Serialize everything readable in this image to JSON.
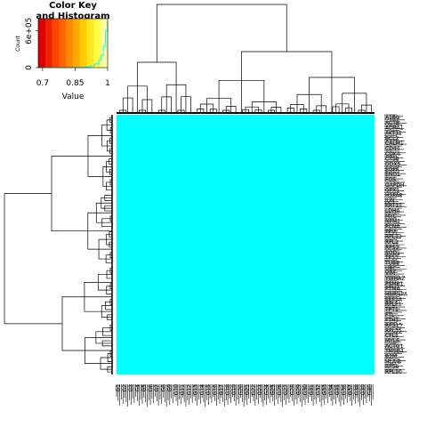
{
  "chart_data": {
    "type": "heatmap",
    "heatmap_color": "#00ffff",
    "row_labels": [
      "A1BG",
      "ACTB",
      "ADRA1",
      "AKT11",
      "BCL2",
      "CALM1",
      "CD44",
      "CDK4",
      "CTSB",
      "DDX5",
      "EGFR",
      "ENO1",
      "FOS",
      "GAPDH",
      "GPX1",
      "HSPA8",
      "JUN",
      "KRT13",
      "LDHA",
      "MYC",
      "NPM1",
      "PCNA",
      "PPIA",
      "RPL13",
      "RPL2",
      "RPS3",
      "SOD1",
      "TP53",
      "TUBB",
      "UBC",
      "VIM",
      "YWHAZ",
      "PSMB1",
      "PTMA",
      "HNRNPA",
      "EEF1A",
      "RPLP1",
      "TPT1",
      "FTL",
      "FTH1",
      "RPS15",
      "RPL35",
      "CFL1",
      "MYL6",
      "ACTG1",
      "TMSB4",
      "B2M",
      "HLA-B",
      "RPS6",
      "RPL10"
    ],
    "col_labels": [
      "G1",
      "G2",
      "G3",
      "G4",
      "G5",
      "G6",
      "G7",
      "G8",
      "G9",
      "G10",
      "G11",
      "G12",
      "G13",
      "G14",
      "G15",
      "G16",
      "G17",
      "G18",
      "G19",
      "G20",
      "G21",
      "G22",
      "G23",
      "G24",
      "G25",
      "G26",
      "G27",
      "G28",
      "G29",
      "G30",
      "G31",
      "G32",
      "G33",
      "G34",
      "G35",
      "G36",
      "G37",
      "G38",
      "G39",
      "G40"
    ],
    "color_key": {
      "title": "Color Key\nand Histogram",
      "xlabel": "Value",
      "ylabel": "Count",
      "x_ticks": [
        "0.7",
        "0.85",
        "1"
      ],
      "y_ticks": [
        "0",
        "6e+05"
      ],
      "xlim": [
        0.68,
        1.0
      ],
      "gradient": [
        "#dd0000",
        "#ee2200",
        "#ff4400",
        "#ff6600",
        "#ff8800",
        "#ffaa00",
        "#ffcc00",
        "#ffe622",
        "#ffff44",
        "#ffffaa"
      ],
      "histogram_color": "#00ffff",
      "histogram": {
        "x": [
          0.68,
          0.72,
          0.76,
          0.8,
          0.84,
          0.88,
          0.9,
          0.92,
          0.94,
          0.96,
          0.97,
          0.98,
          0.99,
          1.0
        ],
        "y": [
          0,
          0,
          0,
          0,
          0,
          5000,
          15000,
          30000,
          60000,
          120000,
          200000,
          350000,
          600000,
          750000
        ]
      }
    }
  }
}
